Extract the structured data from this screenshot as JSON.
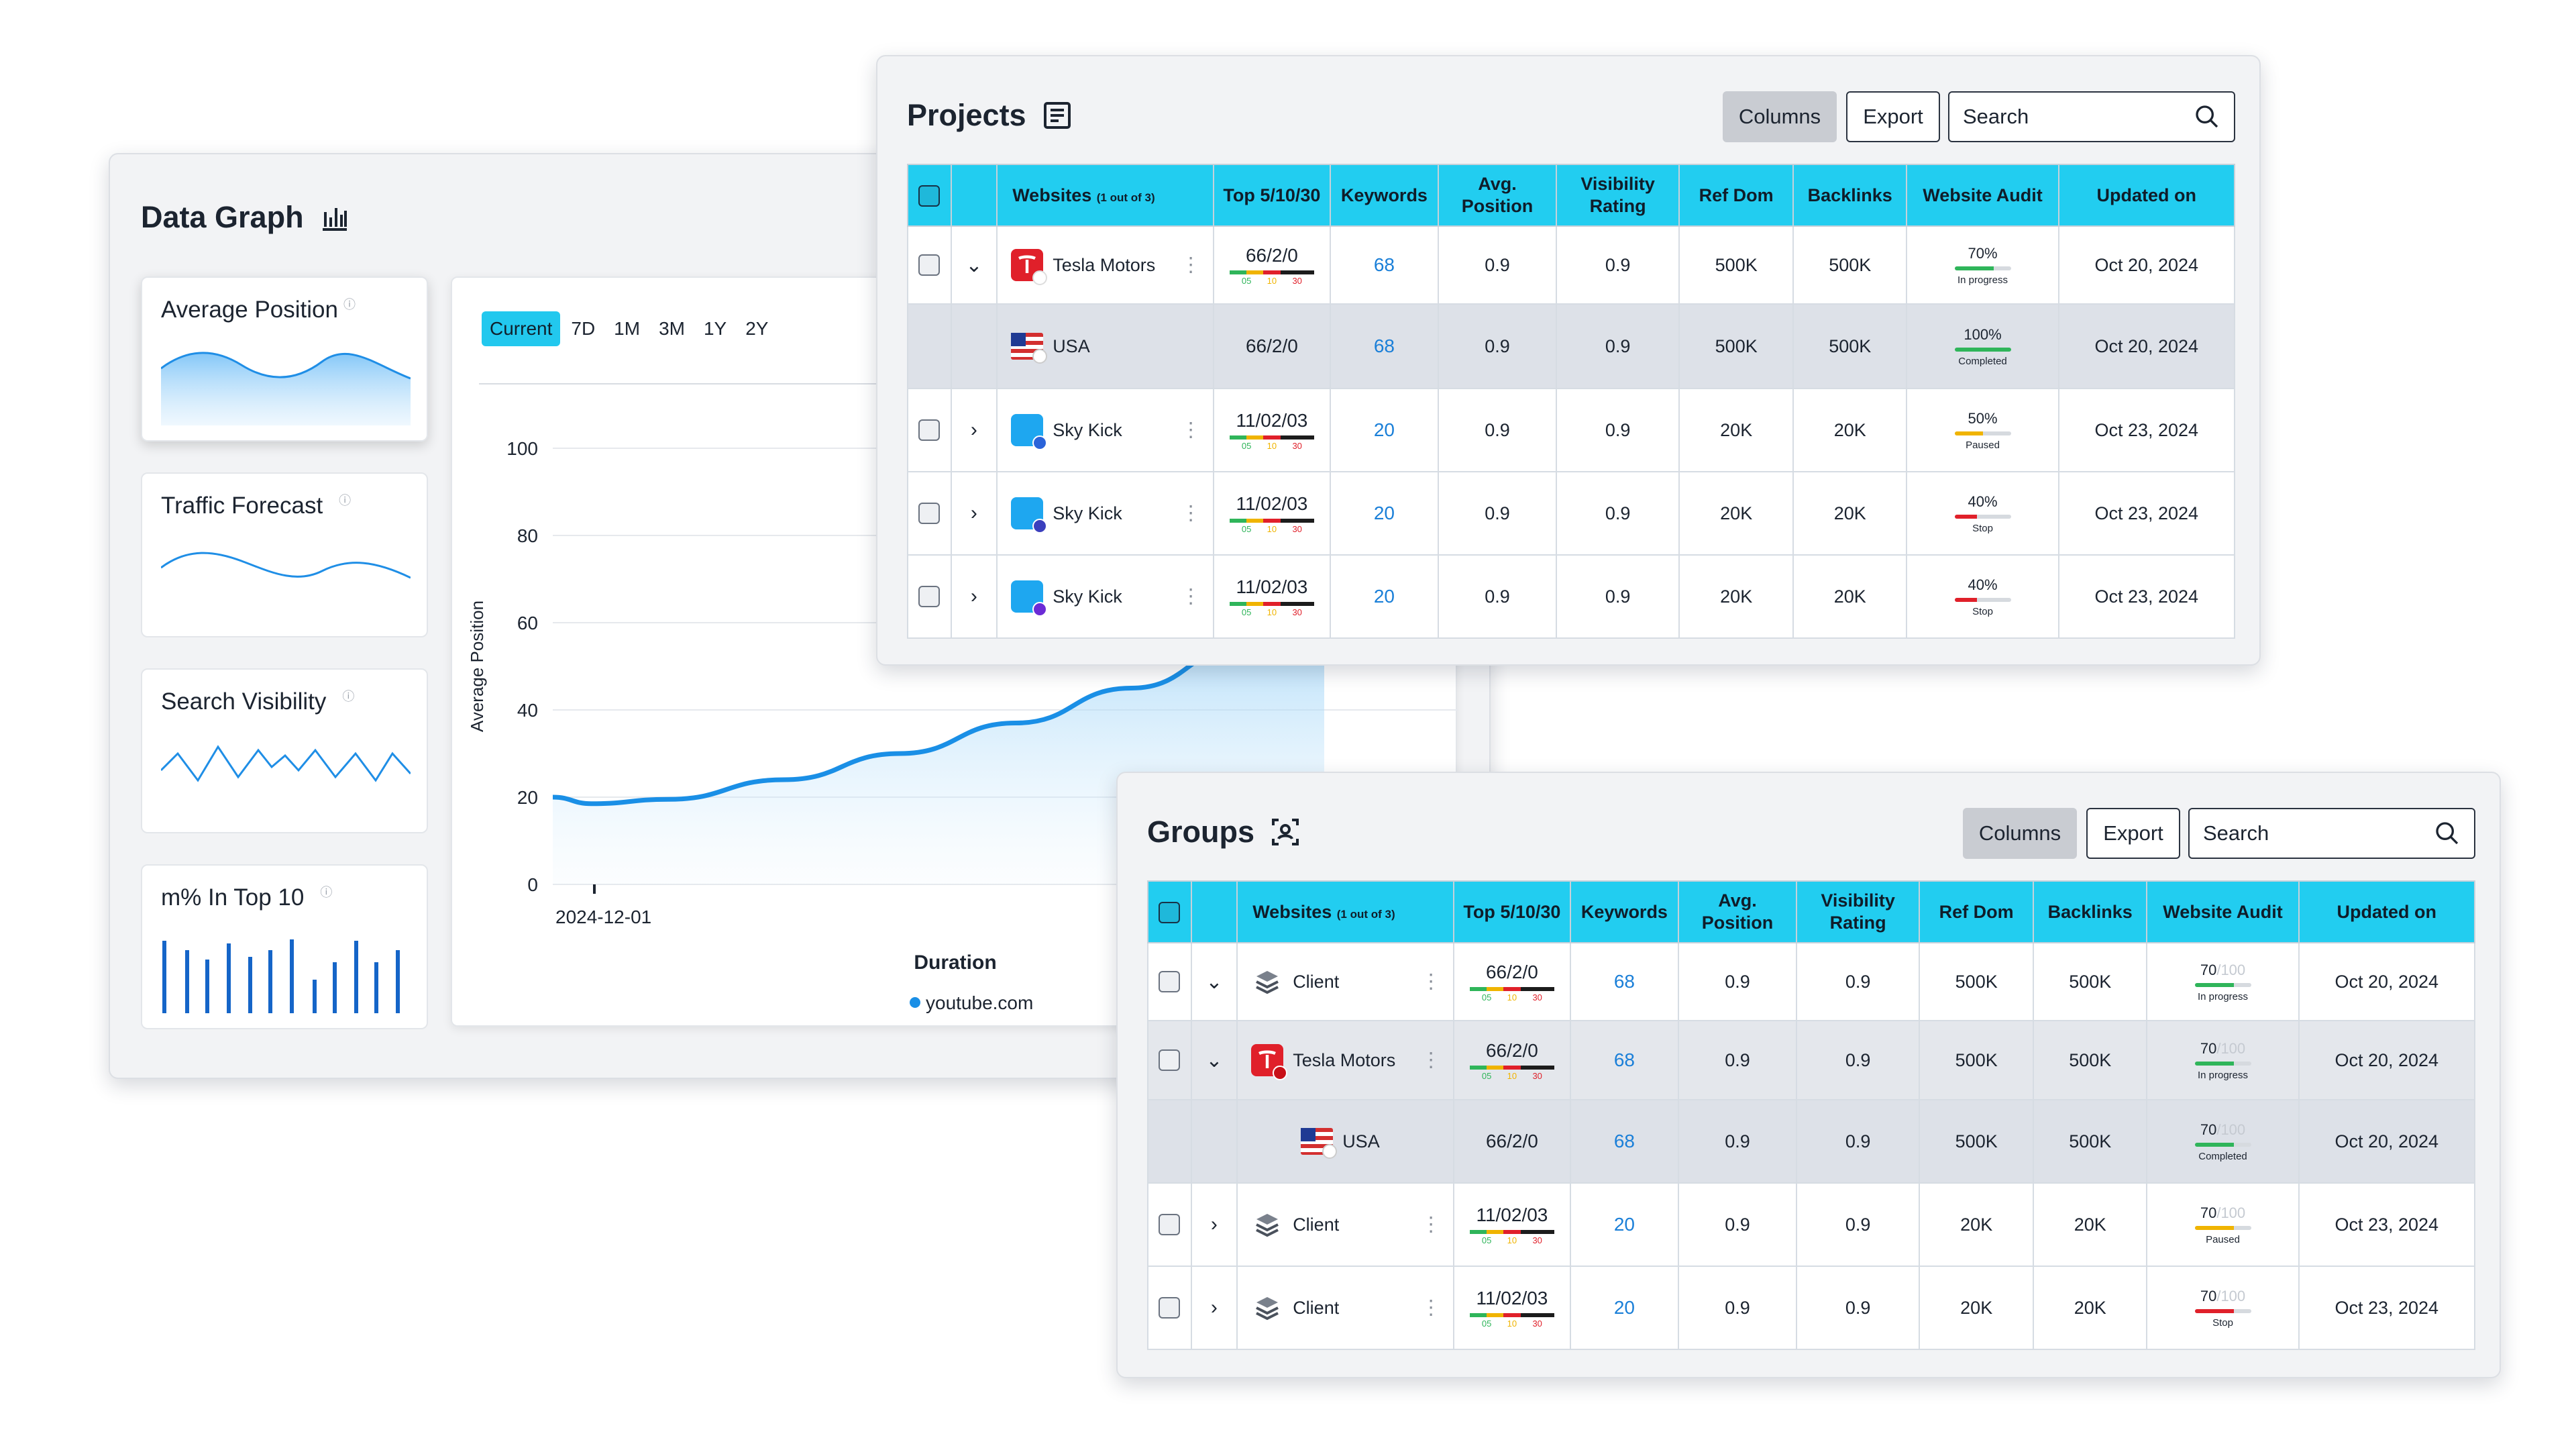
{
  "data_graph": {
    "title": "Data Graph",
    "metrics": [
      {
        "label": "Average Position"
      },
      {
        "label": "Traffic Forecast"
      },
      {
        "label": "Search Visibility"
      },
      {
        "label": "m% In Top 10"
      }
    ],
    "info_glyph": "ⓘ",
    "ranges": [
      "Current",
      "7D",
      "1M",
      "3M",
      "1Y",
      "2Y"
    ],
    "active_range": "Current",
    "chart_data": {
      "type": "line",
      "ylabel": "Average Position",
      "xlabel": "Duration",
      "ylim": [
        0,
        100
      ],
      "yticks": [
        0,
        20,
        40,
        60,
        80,
        100
      ],
      "x_tick": "2024-12-01",
      "series": [
        {
          "name": "youtube.com",
          "color": "#1a8fe6",
          "points": [
            [
              0,
              20
            ],
            [
              0.05,
              18.5
            ],
            [
              0.15,
              19.5
            ],
            [
              0.3,
              24
            ],
            [
              0.45,
              30
            ],
            [
              0.6,
              37
            ],
            [
              0.75,
              45
            ],
            [
              0.9,
              55
            ],
            [
              1.0,
              62
            ]
          ]
        }
      ]
    }
  },
  "projects": {
    "title": "Projects",
    "columns_btn": "Columns",
    "export_btn": "Export",
    "search_placeholder": "Search",
    "headers": {
      "websites": "Websites",
      "websites_sub": "(1 out of 3)",
      "top": "Top 5/10/30",
      "keywords": "Keywords",
      "avg1": "Avg.",
      "avg2": "Position",
      "vis1": "Visibility",
      "vis2": "Rating",
      "ref": "Ref Dom",
      "back": "Backlinks",
      "audit": "Website Audit",
      "upd": "Updated on"
    },
    "rows": [
      {
        "name": "Tesla Motors",
        "top": "66/2/0",
        "kw": "68",
        "avg": "0.9",
        "vis": "0.9",
        "ref": "500K",
        "back": "500K",
        "audit": "70%",
        "status": "In progress",
        "date": "Oct 20, 2024"
      },
      {
        "name": "USA",
        "top": "66/2/0",
        "kw": "68",
        "avg": "0.9",
        "vis": "0.9",
        "ref": "500K",
        "back": "500K",
        "audit": "100%",
        "status": "Completed",
        "date": "Oct 20, 2024"
      },
      {
        "name": "Sky Kick",
        "top": "11/02/03",
        "kw": "20",
        "avg": "0.9",
        "vis": "0.9",
        "ref": "20K",
        "back": "20K",
        "audit": "50%",
        "status": "Paused",
        "date": "Oct 23, 2024"
      },
      {
        "name": "Sky Kick",
        "top": "11/02/03",
        "kw": "20",
        "avg": "0.9",
        "vis": "0.9",
        "ref": "20K",
        "back": "20K",
        "audit": "40%",
        "status": "Stop",
        "date": "Oct 23, 2024"
      },
      {
        "name": "Sky Kick",
        "top": "11/02/03",
        "kw": "20",
        "avg": "0.9",
        "vis": "0.9",
        "ref": "20K",
        "back": "20K",
        "audit": "40%",
        "status": "Stop",
        "date": "Oct 23, 2024"
      }
    ]
  },
  "groups": {
    "title": "Groups",
    "columns_btn": "Columns",
    "export_btn": "Export",
    "search_placeholder": "Search",
    "rows": [
      {
        "name": "Client",
        "top": "66/2/0",
        "kw": "68",
        "avg": "0.9",
        "vis": "0.9",
        "ref": "500K",
        "back": "500K",
        "audit": "70",
        "status": "In progress",
        "date": "Oct 20, 2024"
      },
      {
        "name": "Tesla Motors",
        "top": "66/2/0",
        "kw": "68",
        "avg": "0.9",
        "vis": "0.9",
        "ref": "500K",
        "back": "500K",
        "audit": "70",
        "status": "In progress",
        "date": "Oct 20, 2024"
      },
      {
        "name": "USA",
        "top": "66/2/0",
        "kw": "68",
        "avg": "0.9",
        "vis": "0.9",
        "ref": "500K",
        "back": "500K",
        "audit": "70",
        "status": "Completed",
        "date": "Oct 20, 2024"
      },
      {
        "name": "Client",
        "top": "11/02/03",
        "kw": "20",
        "avg": "0.9",
        "vis": "0.9",
        "ref": "20K",
        "back": "20K",
        "audit": "70",
        "status": "Paused",
        "date": "Oct 23, 2024"
      },
      {
        "name": "Client",
        "top": "11/02/03",
        "kw": "20",
        "avg": "0.9",
        "vis": "0.9",
        "ref": "20K",
        "back": "20K",
        "audit": "70",
        "status": "Stop",
        "date": "Oct 23, 2024"
      }
    ],
    "audit_max": "/100"
  },
  "top_bar_labels": [
    "05",
    "10",
    "30"
  ],
  "colors": {
    "accent": "#22cdf0",
    "link": "#1a7fd8",
    "tesla": "#e0202a",
    "skykick": "#1ea7f0",
    "progress": "#2fb55a",
    "paused": "#f0b400",
    "stop": "#e0202a"
  }
}
